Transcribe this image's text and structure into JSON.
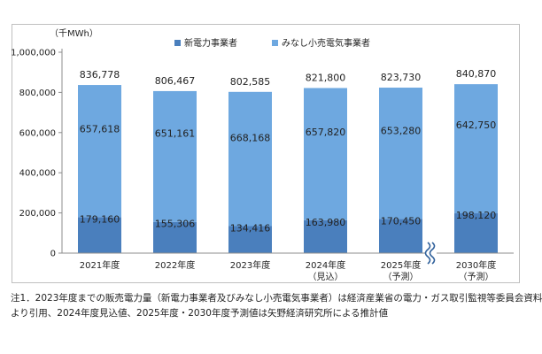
{
  "chart_data": {
    "type": "bar",
    "stacked": true,
    "unit_label": "（千MWh）",
    "categories": [
      [
        "2021年度",
        ""
      ],
      [
        "2022年度",
        ""
      ],
      [
        "2023年度",
        ""
      ],
      [
        "2024年度",
        "（見込）"
      ],
      [
        "2025年度",
        "（予測）"
      ],
      [
        "2030年度",
        "（予測）"
      ]
    ],
    "series": [
      {
        "name": "新電力事業者",
        "values": [
          179160,
          155306,
          134416,
          163980,
          170450,
          198120
        ],
        "color": "#4a7fbd"
      },
      {
        "name": "みなし小売電気事業者",
        "values": [
          657618,
          651161,
          668168,
          657820,
          653280,
          642750
        ],
        "color": "#6ea8e0"
      }
    ],
    "totals": [
      836778,
      806467,
      802585,
      821800,
      823730,
      840870
    ],
    "value_labels": {
      "totals": [
        "836,778",
        "806,467",
        "802,585",
        "821,800",
        "823,730",
        "840,870"
      ],
      "series_0": [
        "179,160",
        "155,306",
        "134,416",
        "163,980",
        "170,450",
        "198,120"
      ],
      "series_1": [
        "657,618",
        "651,161",
        "668,168",
        "657,820",
        "653,280",
        "642,750"
      ]
    },
    "yaxis": {
      "min": 0,
      "max": 1000000,
      "ticks": [
        0,
        200000,
        400000,
        600000,
        800000,
        1000000
      ],
      "tick_labels": [
        "0",
        "200,000",
        "400,000",
        "600,000",
        "800,000",
        "1,000,000"
      ]
    },
    "axis_break_before_index": 5,
    "legend_position": "top-center",
    "grid": false
  },
  "notes": [
    "注1．2023年度までの販売電力量（新電力事業者及びみなし小売電気事業者）は経済産業省の電力・ガス取引監視等委員会資料",
    "より引用、2024年度見込値、2025年度・2030年度予測値は矢野経済研究所による推計値"
  ]
}
